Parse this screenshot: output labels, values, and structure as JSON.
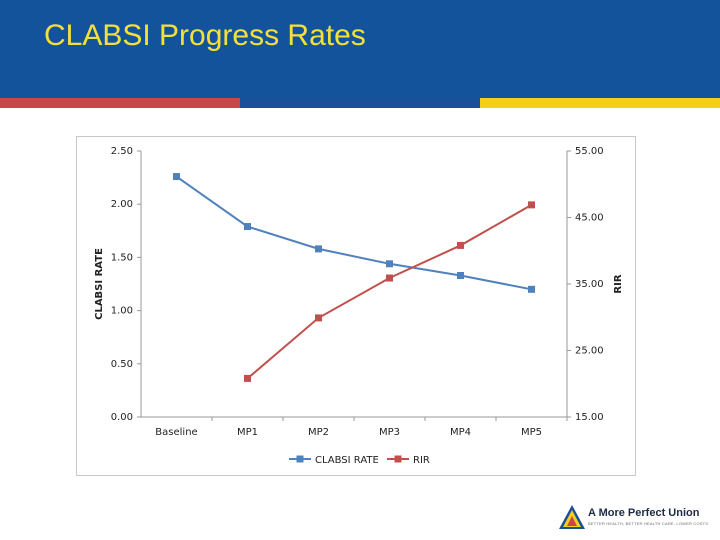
{
  "slide": {
    "title": "CLABSI Progress Rates"
  },
  "colors": {
    "header": "#13539c",
    "title": "#f5e03a",
    "stripe_red": "#c9464a",
    "stripe_blue": "#1b4f9a",
    "stripe_yellow": "#f2cf1d",
    "series_clabsi": "#4f81bd",
    "series_rir": "#c0504d"
  },
  "logo": {
    "name": "A More Perfect Union",
    "tagline": "BETTER HEALTH, BETTER HEALTH CARE, LOWER COSTS"
  },
  "chart_data": {
    "type": "line",
    "categories": [
      "Baseline",
      "MP1",
      "MP2",
      "MP3",
      "MP4",
      "MP5"
    ],
    "ylabel": "CLABSI RATE",
    "y2label": "RIR",
    "ylim": [
      0,
      2.5
    ],
    "y2lim": [
      15,
      55
    ],
    "yticks": [
      "0.00",
      "0.50",
      "1.00",
      "1.50",
      "2.00",
      "2.50"
    ],
    "y2ticks": [
      "15.00",
      "25.00",
      "35.00",
      "45.00",
      "55.00"
    ],
    "grid": false,
    "legend_position": "bottom",
    "series": [
      {
        "name": "CLABSI RATE",
        "axis": "left",
        "color": "#4f81bd",
        "values": [
          2.26,
          1.79,
          1.58,
          1.44,
          1.33,
          1.2
        ]
      },
      {
        "name": "RIR",
        "axis": "right",
        "color": "#c0504d",
        "values": [
          null,
          20.8,
          29.9,
          35.9,
          40.8,
          46.9
        ]
      }
    ]
  }
}
